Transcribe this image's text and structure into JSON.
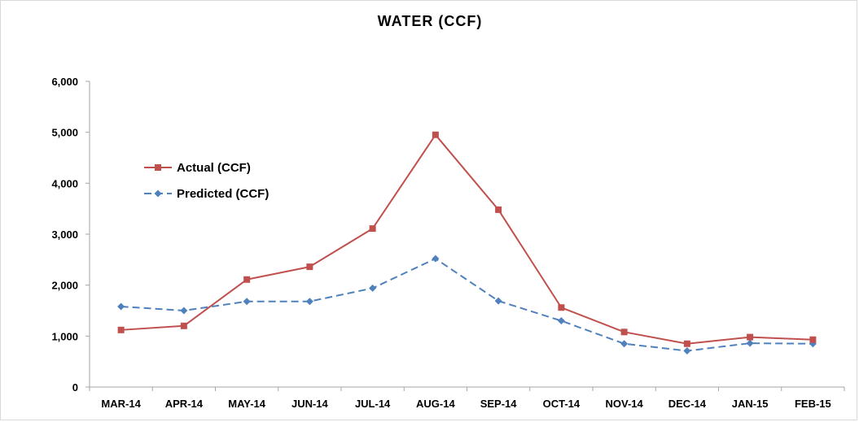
{
  "chart_data": {
    "type": "line",
    "title": "WATER (CCF)",
    "xlabel": "",
    "ylabel": "",
    "categories": [
      "MAR-14",
      "APR-14",
      "MAY-14",
      "JUN-14",
      "JUL-14",
      "AUG-14",
      "SEP-14",
      "OCT-14",
      "NOV-14",
      "DEC-14",
      "JAN-15",
      "FEB-15"
    ],
    "ylim": [
      0,
      6000
    ],
    "yticks": [
      0,
      1000,
      2000,
      3000,
      4000,
      5000,
      6000
    ],
    "ytick_labels": [
      "0",
      "1,000",
      "2,000",
      "3,000",
      "4,000",
      "5,000",
      "6,000"
    ],
    "grid": false,
    "legend_position": "left",
    "series": [
      {
        "name": "Actual (CCF)",
        "color": "#c0504d",
        "marker": "square",
        "line_style": "solid",
        "values": [
          1120,
          1200,
          2110,
          2360,
          3110,
          4950,
          3480,
          1560,
          1080,
          850,
          980,
          930
        ]
      },
      {
        "name": "Predicted (CCF)",
        "color": "#4f81bd",
        "marker": "diamond",
        "line_style": "dashed",
        "values": [
          1580,
          1500,
          1680,
          1680,
          1940,
          2520,
          1690,
          1300,
          850,
          710,
          860,
          850
        ]
      }
    ]
  }
}
